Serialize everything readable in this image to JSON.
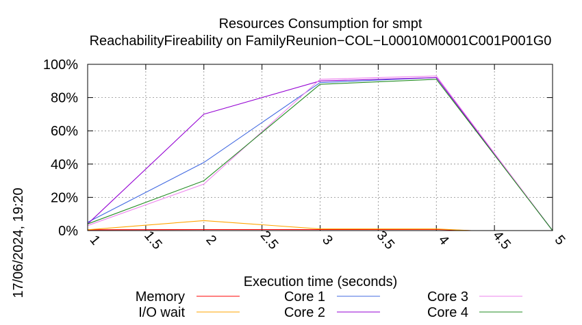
{
  "chart_data": {
    "type": "line",
    "title": "Resources Consumption for smpt",
    "subtitle": "ReachabilityFireability on FamilyReunion−COL−L00010M0001C001P001G0",
    "xlabel": "Execution time (seconds)",
    "ylabel": "",
    "xlim": [
      1,
      5
    ],
    "ylim": [
      0,
      100
    ],
    "x_ticks": [
      "1",
      "1.5",
      "2",
      "2.5",
      "3",
      "3.5",
      "4",
      "4.5",
      "5"
    ],
    "y_ticks": [
      "0%",
      "20%",
      "40%",
      "60%",
      "80%",
      "100%"
    ],
    "grid": true,
    "legend_position": "bottom",
    "series": [
      {
        "name": "Memory",
        "color": "#ff0000",
        "x": [
          1,
          2,
          3,
          4,
          4.3,
          5
        ],
        "y": [
          0.5,
          0.6,
          0.6,
          0.7,
          0,
          0
        ]
      },
      {
        "name": "I/O wait",
        "color": "#ffa500",
        "x": [
          1,
          2,
          3,
          4,
          4.3,
          5
        ],
        "y": [
          0.5,
          6,
          1,
          1,
          0,
          0
        ]
      },
      {
        "name": "Core 1",
        "color": "#4169e1",
        "x": [
          1,
          2,
          3,
          4,
          5
        ],
        "y": [
          5,
          41,
          89,
          92,
          0
        ]
      },
      {
        "name": "Core 2",
        "color": "#9400d3",
        "x": [
          1,
          2,
          3,
          4,
          5
        ],
        "y": [
          4,
          70,
          90,
          92,
          0
        ]
      },
      {
        "name": "Core 3",
        "color": "#ee82ee",
        "x": [
          1,
          2,
          3,
          4,
          5
        ],
        "y": [
          3,
          28,
          91,
          93,
          0
        ]
      },
      {
        "name": "Core 4",
        "color": "#228b22",
        "x": [
          1,
          2,
          3,
          4,
          5
        ],
        "y": [
          4,
          30,
          88,
          91,
          0
        ]
      }
    ]
  },
  "timestamp": "17/06/2024, 19:20"
}
